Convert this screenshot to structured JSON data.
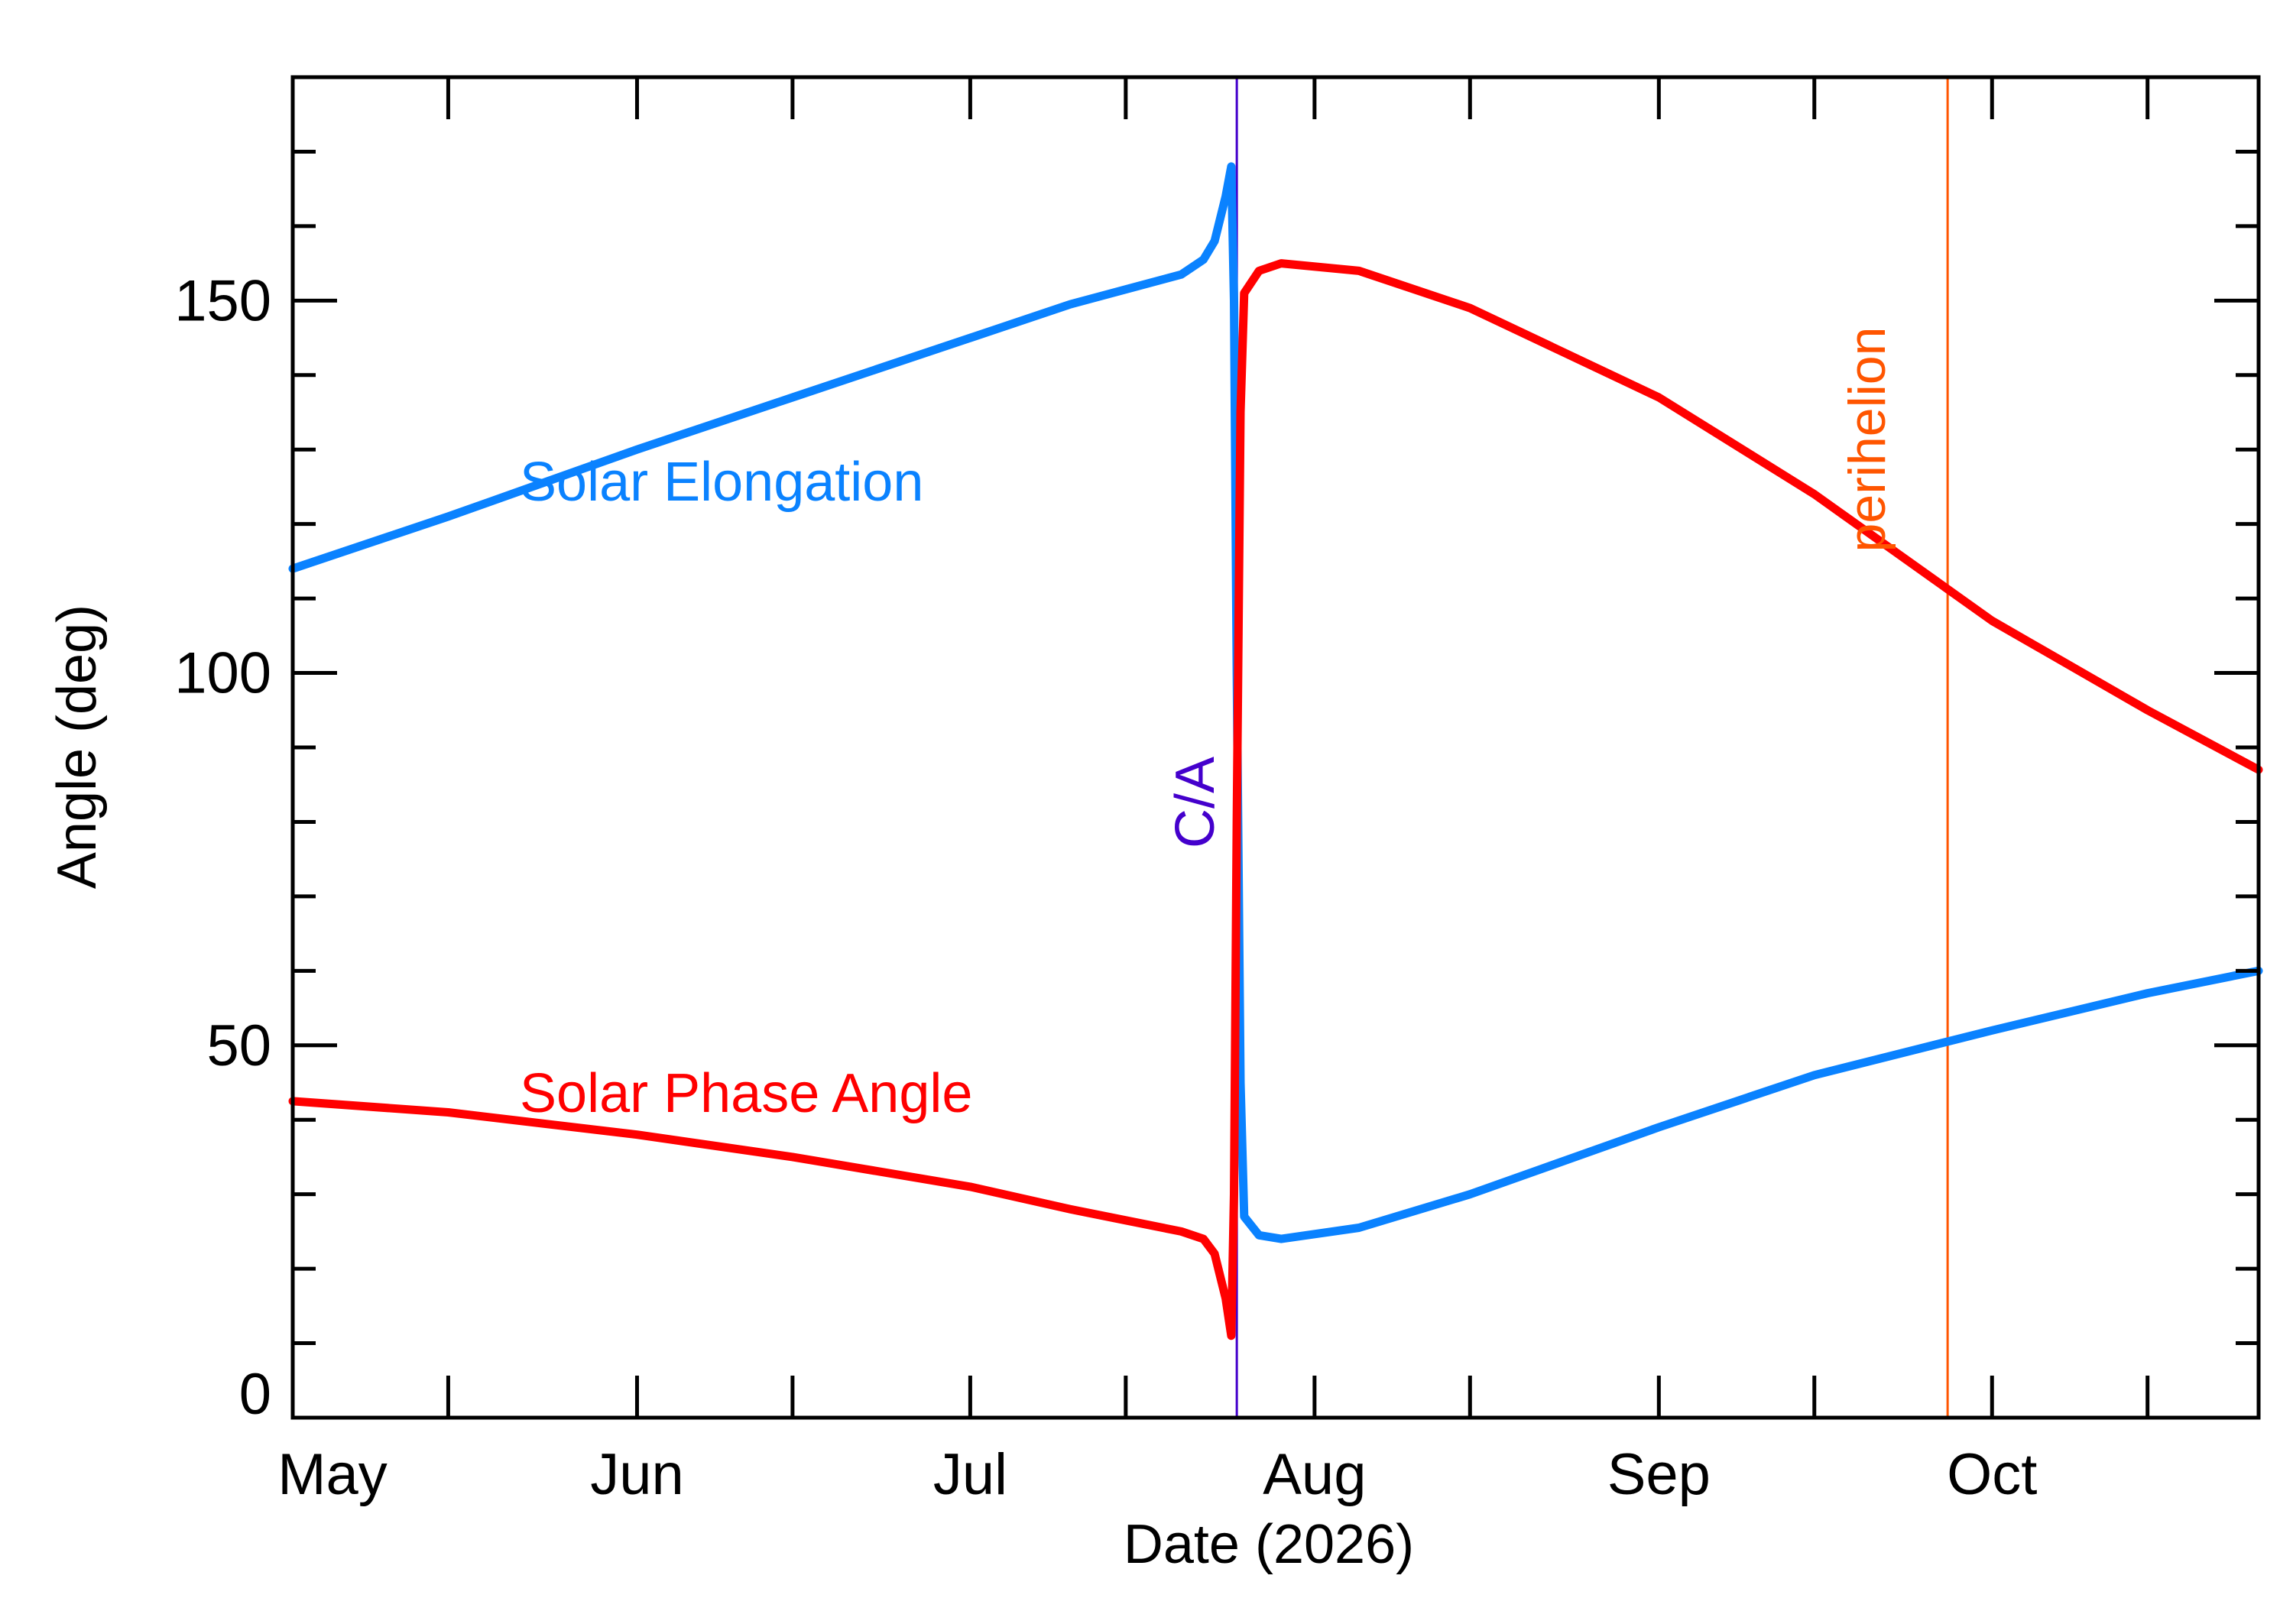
{
  "chart_data": {
    "type": "line",
    "xlabel": "Date (2026)",
    "ylabel": "Angle (deg)",
    "x_range": [
      "2026-05-01",
      "2026-10-25"
    ],
    "ylim": [
      0,
      180
    ],
    "grid": false,
    "x_ticks": [
      {
        "date": "2026-05-01",
        "label": "May"
      },
      {
        "date": "2026-06-01",
        "label": "Jun"
      },
      {
        "date": "2026-07-01",
        "label": "Jul"
      },
      {
        "date": "2026-08-01",
        "label": "Aug"
      },
      {
        "date": "2026-09-01",
        "label": "Sep"
      },
      {
        "date": "2026-10-01",
        "label": "Oct"
      }
    ],
    "x_minor_ticks": [
      "2026-05-15",
      "2026-06-15",
      "2026-07-15",
      "2026-08-15",
      "2026-09-15",
      "2026-10-15"
    ],
    "y_ticks": [
      0,
      50,
      100,
      150
    ],
    "y_minor_step": 10,
    "vertical_markers": [
      {
        "label": "C/A",
        "date": "2026-07-25",
        "color": "#4400cc"
      },
      {
        "label": "perihelion",
        "date": "2026-09-27",
        "color": "#ff5500"
      }
    ],
    "series": [
      {
        "name": "Solar Elongation",
        "color": "#0a82ff",
        "points": [
          [
            "2026-05-01",
            114
          ],
          [
            "2026-05-15",
            121
          ],
          [
            "2026-06-01",
            130
          ],
          [
            "2026-06-15",
            137
          ],
          [
            "2026-07-01",
            145
          ],
          [
            "2026-07-10",
            149.5
          ],
          [
            "2026-07-15",
            151.5
          ],
          [
            "2026-07-20",
            153.5
          ],
          [
            "2026-07-22",
            155.5
          ],
          [
            "2026-07-23",
            158
          ],
          [
            "2026-07-24",
            164
          ],
          [
            "2026-07-24T12:00",
            168
          ],
          [
            "2026-07-24T18:00",
            150
          ],
          [
            "2026-07-25",
            100
          ],
          [
            "2026-07-25T08:00",
            45
          ],
          [
            "2026-07-25T16:00",
            27
          ],
          [
            "2026-07-27",
            24.5
          ],
          [
            "2026-07-29",
            24
          ],
          [
            "2026-08-05",
            25.5
          ],
          [
            "2026-08-15",
            30
          ],
          [
            "2026-09-01",
            39
          ],
          [
            "2026-09-15",
            46
          ],
          [
            "2026-10-01",
            52
          ],
          [
            "2026-10-15",
            57
          ],
          [
            "2026-10-25",
            60
          ]
        ]
      },
      {
        "name": "Solar Phase Angle",
        "color": "#ff0000",
        "points": [
          [
            "2026-05-01",
            42.5
          ],
          [
            "2026-05-15",
            41
          ],
          [
            "2026-06-01",
            38
          ],
          [
            "2026-06-15",
            35
          ],
          [
            "2026-07-01",
            31
          ],
          [
            "2026-07-10",
            28
          ],
          [
            "2026-07-15",
            26.5
          ],
          [
            "2026-07-20",
            25
          ],
          [
            "2026-07-22",
            24
          ],
          [
            "2026-07-23",
            22
          ],
          [
            "2026-07-24",
            16
          ],
          [
            "2026-07-24T12:00",
            11
          ],
          [
            "2026-07-24T18:00",
            30
          ],
          [
            "2026-07-25",
            80
          ],
          [
            "2026-07-25T08:00",
            135
          ],
          [
            "2026-07-25T16:00",
            151
          ],
          [
            "2026-07-27",
            154
          ],
          [
            "2026-07-29",
            155
          ],
          [
            "2026-08-05",
            154
          ],
          [
            "2026-08-15",
            149
          ],
          [
            "2026-09-01",
            137
          ],
          [
            "2026-09-15",
            124
          ],
          [
            "2026-10-01",
            107
          ],
          [
            "2026-10-15",
            95
          ],
          [
            "2026-10-25",
            87
          ]
        ]
      }
    ]
  }
}
